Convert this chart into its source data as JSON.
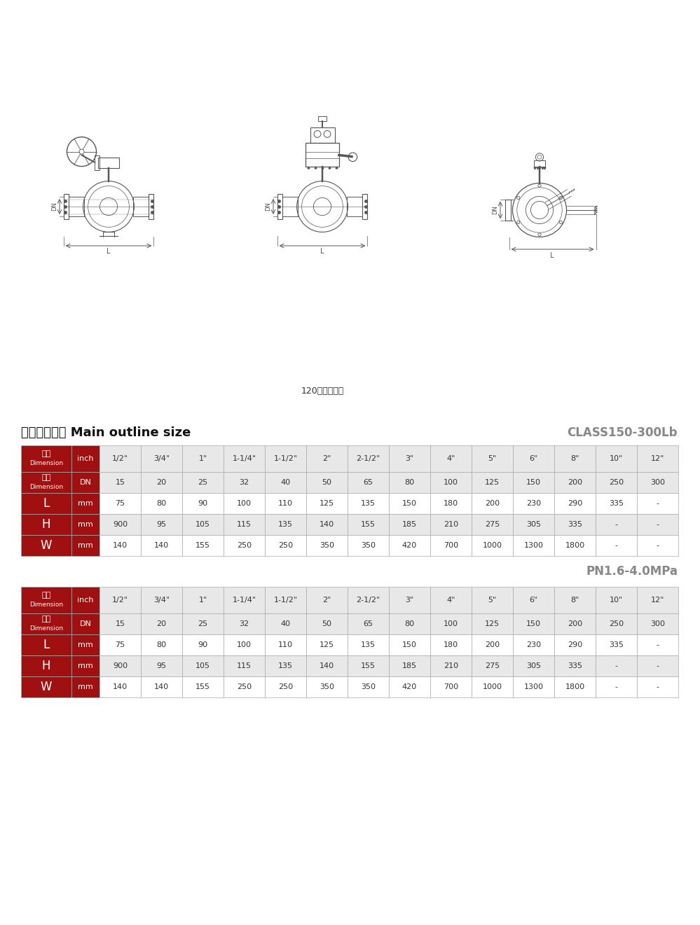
{
  "title_caption": "120度三通球阀",
  "section_title": "主要外形尺寸 Main outline size",
  "class_label1": "CLASS150-300Lb",
  "class_label2": "PN1.6-4.0MPa",
  "bg_color": "#ffffff",
  "table_header_bg": "#a01010",
  "table_header_text": "#ffffff",
  "table_row_alt1": "#e8e8e8",
  "table_row_alt2": "#ffffff",
  "table_border": "#aaaaaa",
  "inch_values": [
    "1/2\"",
    "3/4\"",
    "1\"",
    "1-1/4\"",
    "1-1/2\"",
    "2\"",
    "2-1/2\"",
    "3\"",
    "4\"",
    "5\"",
    "6\"",
    "8\"",
    "10\"",
    "12\""
  ],
  "dn_values": [
    "15",
    "20",
    "25",
    "32",
    "40",
    "50",
    "65",
    "80",
    "100",
    "125",
    "150",
    "200",
    "250",
    "300"
  ],
  "L_values": [
    "75",
    "80",
    "90",
    "100",
    "110",
    "125",
    "135",
    "150",
    "180",
    "200",
    "230",
    "290",
    "335",
    "-"
  ],
  "H_values": [
    "900",
    "95",
    "105",
    "115",
    "135",
    "140",
    "155",
    "185",
    "210",
    "275",
    "305",
    "335",
    "-",
    "-"
  ],
  "W_values": [
    "140",
    "140",
    "155",
    "250",
    "250",
    "350",
    "350",
    "420",
    "700",
    "1000",
    "1300",
    "1800",
    "-",
    "-"
  ],
  "dim_label_cn": "尺寸",
  "dim_label_en": "Dimension",
  "line_color": "#555555",
  "dim_line_color": "#333333"
}
